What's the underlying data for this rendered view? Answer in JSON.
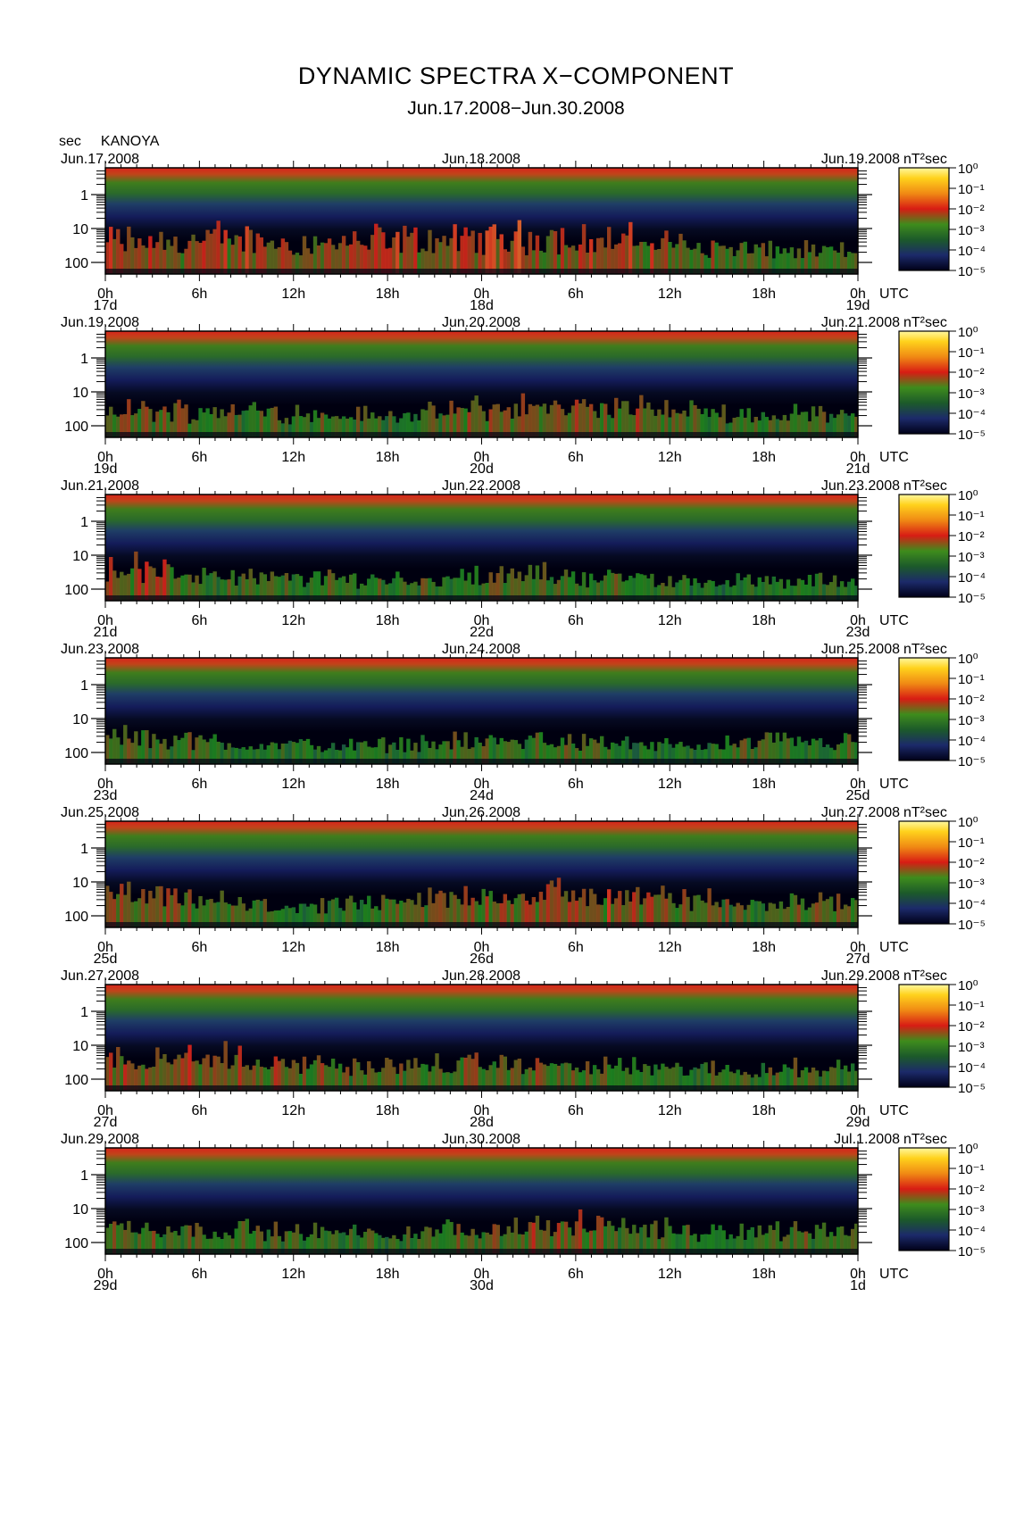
{
  "title": "DYNAMIC SPECTRA X−COMPONENT",
  "subtitle": "Jun.17.2008−Jun.30.2008",
  "station_unit": "sec",
  "station": "KANOYA",
  "colorbar_unit": "nT²sec",
  "colorbar_ticks": [
    "10⁰",
    "10⁻¹",
    "10⁻²",
    "10⁻³",
    "10⁻⁴",
    "10⁻⁵"
  ],
  "colors": {
    "low": "#000020",
    "mid_low": "#1c2a78",
    "mid": "#1f8a1f",
    "high": "#e0221c",
    "max": "#ffe94a"
  },
  "chart_data": [
    {
      "type": "heatmap",
      "start_label": "Jun.17.2008",
      "mid_label": "Jun.18.2008",
      "end_label": "Jun.19.2008",
      "x_hour_ticks": [
        "0h",
        "6h",
        "12h",
        "18h",
        "0h",
        "6h",
        "12h",
        "18h",
        "0h"
      ],
      "day_labels": [
        "17d",
        "18d",
        "19d"
      ],
      "y_ticks": [
        "1",
        "10",
        "100"
      ],
      "y_unit": "sec",
      "x_unit": "UTC",
      "zscale": "log",
      "zrange": [
        1e-05,
        1
      ],
      "activity": [
        0.62,
        0.55,
        0.58,
        0.66,
        0.6,
        0.52,
        0.57,
        0.63,
        0.58,
        0.61,
        0.7,
        0.65,
        0.62,
        0.6,
        0.55,
        0.42,
        0.38,
        0.32,
        0.3,
        0.28
      ]
    },
    {
      "type": "heatmap",
      "start_label": "Jun.19.2008",
      "mid_label": "Jun.20.2008",
      "end_label": "Jun.21.2008",
      "x_hour_ticks": [
        "0h",
        "6h",
        "12h",
        "18h",
        "0h",
        "6h",
        "12h",
        "18h",
        "0h"
      ],
      "day_labels": [
        "19d",
        "20d",
        "21d"
      ],
      "y_ticks": [
        "1",
        "10",
        "100"
      ],
      "y_unit": "sec",
      "x_unit": "UTC",
      "zscale": "log",
      "zrange": [
        1e-05,
        1
      ],
      "activity": [
        0.45,
        0.42,
        0.4,
        0.44,
        0.38,
        0.34,
        0.3,
        0.28,
        0.3,
        0.45,
        0.5,
        0.52,
        0.5,
        0.48,
        0.42,
        0.36,
        0.33,
        0.3,
        0.35,
        0.38
      ]
    },
    {
      "type": "heatmap",
      "start_label": "Jun.21.2008",
      "mid_label": "Jun.22.2008",
      "end_label": "Jun.23.2008",
      "x_hour_ticks": [
        "0h",
        "6h",
        "12h",
        "18h",
        "0h",
        "6h",
        "12h",
        "18h",
        "0h"
      ],
      "day_labels": [
        "21d",
        "22d",
        "23d"
      ],
      "y_ticks": [
        "1",
        "10",
        "100"
      ],
      "y_unit": "sec",
      "x_unit": "UTC",
      "zscale": "log",
      "zrange": [
        1e-05,
        1
      ],
      "activity": [
        0.6,
        0.55,
        0.42,
        0.32,
        0.3,
        0.3,
        0.28,
        0.28,
        0.3,
        0.32,
        0.36,
        0.38,
        0.34,
        0.3,
        0.26,
        0.22,
        0.2,
        0.2,
        0.22,
        0.25
      ]
    },
    {
      "type": "heatmap",
      "start_label": "Jun.23.2008",
      "mid_label": "Jun.24.2008",
      "end_label": "Jun.25.2008",
      "x_hour_ticks": [
        "0h",
        "6h",
        "12h",
        "18h",
        "0h",
        "6h",
        "12h",
        "18h",
        "0h"
      ],
      "day_labels": [
        "23d",
        "24d",
        "25d"
      ],
      "y_ticks": [
        "1",
        "10",
        "100"
      ],
      "y_unit": "sec",
      "x_unit": "UTC",
      "zscale": "log",
      "zrange": [
        1e-05,
        1
      ],
      "activity": [
        0.42,
        0.38,
        0.34,
        0.25,
        0.22,
        0.2,
        0.18,
        0.2,
        0.25,
        0.3,
        0.32,
        0.35,
        0.3,
        0.22,
        0.18,
        0.16,
        0.28,
        0.3,
        0.25,
        0.3
      ]
    },
    {
      "type": "heatmap",
      "start_label": "Jun.25.2008",
      "mid_label": "Jun.26.2008",
      "end_label": "Jun.27.2008",
      "x_hour_ticks": [
        "0h",
        "6h",
        "12h",
        "18h",
        "0h",
        "6h",
        "12h",
        "18h",
        "0h"
      ],
      "day_labels": [
        "25d",
        "26d",
        "27d"
      ],
      "y_ticks": [
        "1",
        "10",
        "100"
      ],
      "y_unit": "sec",
      "x_unit": "UTC",
      "zscale": "log",
      "zrange": [
        1e-05,
        1
      ],
      "activity": [
        0.55,
        0.5,
        0.42,
        0.35,
        0.28,
        0.24,
        0.26,
        0.3,
        0.45,
        0.52,
        0.58,
        0.6,
        0.58,
        0.55,
        0.48,
        0.42,
        0.4,
        0.38,
        0.4,
        0.42
      ]
    },
    {
      "type": "heatmap",
      "start_label": "Jun.27.2008",
      "mid_label": "Jun.28.2008",
      "end_label": "Jun.29.2008",
      "x_hour_ticks": [
        "0h",
        "6h",
        "12h",
        "18h",
        "0h",
        "6h",
        "12h",
        "18h",
        "0h"
      ],
      "day_labels": [
        "27d",
        "28d",
        "29d"
      ],
      "y_ticks": [
        "1",
        "10",
        "100"
      ],
      "y_unit": "sec",
      "x_unit": "UTC",
      "zscale": "log",
      "zrange": [
        1e-05,
        1
      ],
      "activity": [
        0.62,
        0.6,
        0.58,
        0.55,
        0.48,
        0.42,
        0.4,
        0.38,
        0.36,
        0.4,
        0.42,
        0.4,
        0.36,
        0.32,
        0.28,
        0.26,
        0.28,
        0.3,
        0.32,
        0.34
      ]
    },
    {
      "type": "heatmap",
      "start_label": "Jun.29.2008",
      "mid_label": "Jun.30.2008",
      "end_label": "Jul.1.2008",
      "x_hour_ticks": [
        "0h",
        "6h",
        "12h",
        "18h",
        "0h",
        "6h",
        "12h",
        "18h",
        "0h"
      ],
      "day_labels": [
        "29d",
        "30d",
        "1d"
      ],
      "y_ticks": [
        "1",
        "10",
        "100"
      ],
      "y_unit": "sec",
      "x_unit": "UTC",
      "zscale": "log",
      "zrange": [
        1e-05,
        1
      ],
      "activity": [
        0.42,
        0.4,
        0.38,
        0.36,
        0.32,
        0.28,
        0.26,
        0.25,
        0.28,
        0.36,
        0.44,
        0.48,
        0.46,
        0.42,
        0.34,
        0.28,
        0.3,
        0.34,
        0.38,
        0.4
      ]
    }
  ]
}
